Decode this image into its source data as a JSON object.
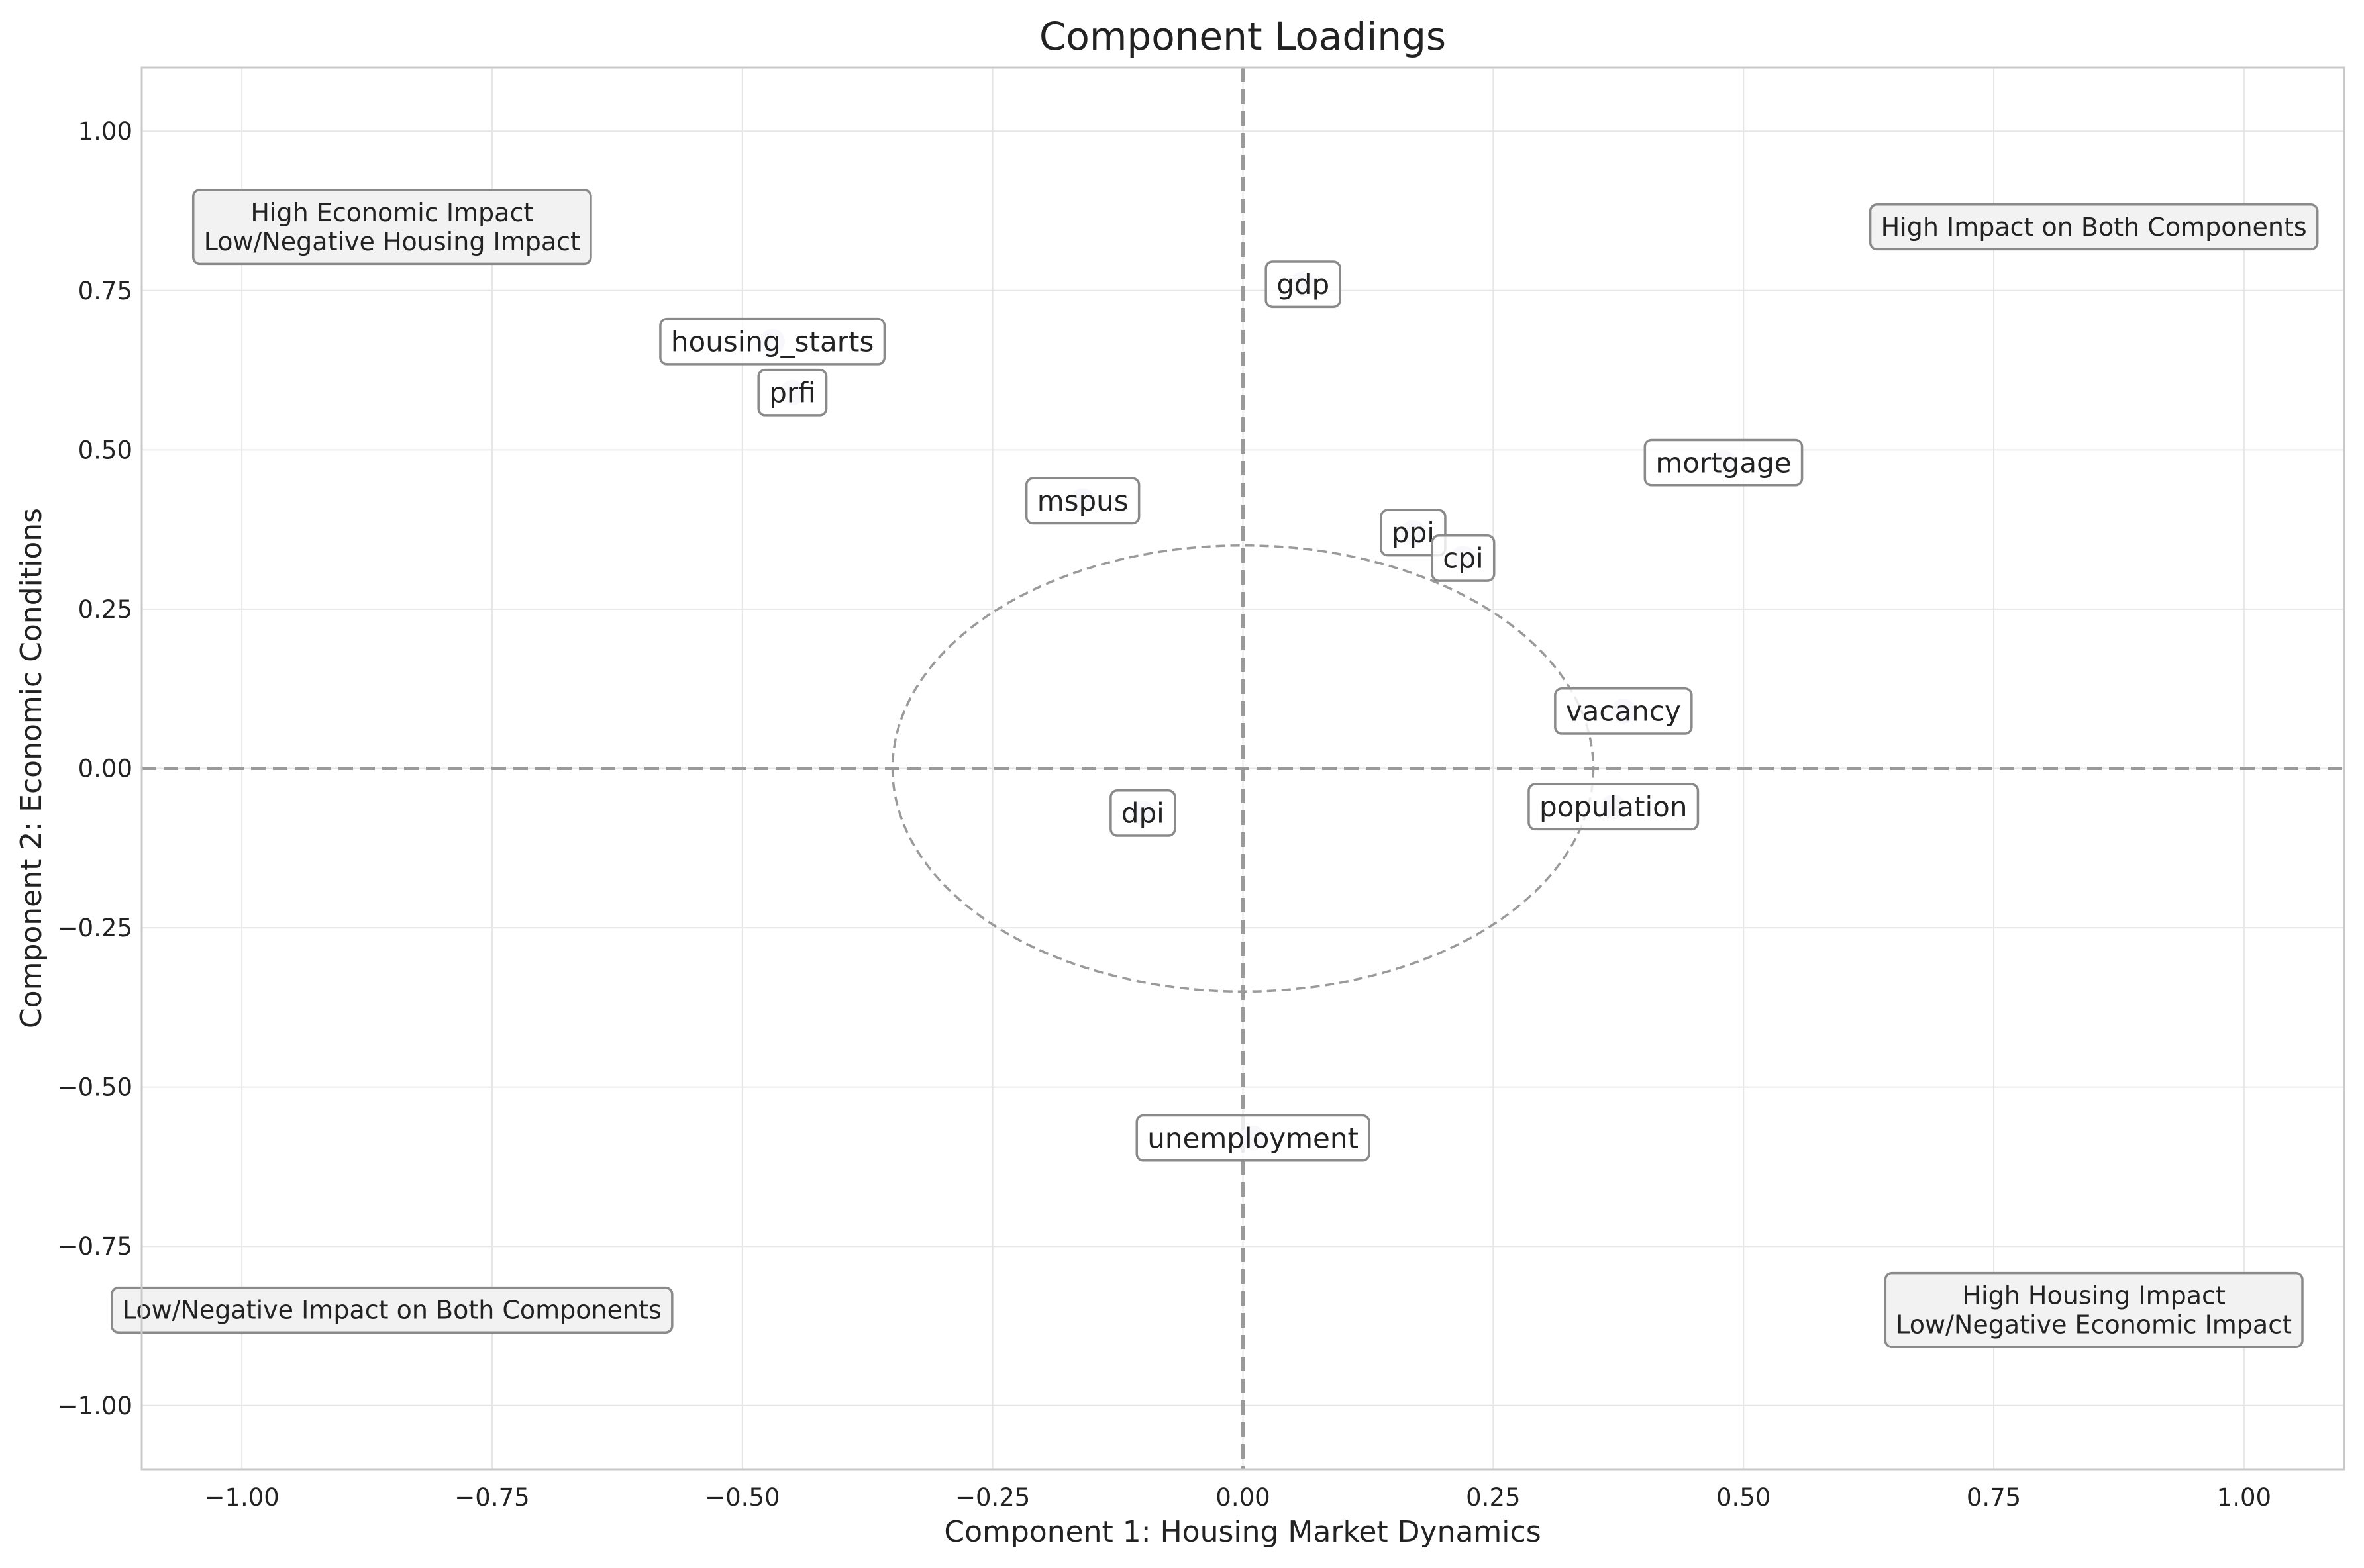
{
  "chart_data": {
    "type": "scatter",
    "title": "Component Loadings",
    "xlabel": "Component 1: Housing Market Dynamics",
    "ylabel": "Component 2: Economic Conditions",
    "xlim": [
      -1.1,
      1.1
    ],
    "ylim": [
      -1.1,
      1.1
    ],
    "x_ticks": [
      -1.0,
      -0.75,
      -0.5,
      -0.25,
      0.0,
      0.25,
      0.5,
      0.75,
      1.0
    ],
    "y_ticks": [
      -1.0,
      -0.75,
      -0.5,
      -0.25,
      0.0,
      0.25,
      0.5,
      0.75,
      1.0
    ],
    "x_tick_labels": [
      "−1.00",
      "−0.75",
      "−0.50",
      "−0.25",
      "0.00",
      "0.25",
      "0.50",
      "0.75",
      "1.00"
    ],
    "y_tick_labels": [
      "−1.00",
      "−0.75",
      "−0.50",
      "−0.25",
      "0.00",
      "0.25",
      "0.50",
      "0.75",
      "1.00"
    ],
    "grid": true,
    "reference_lines": {
      "x": 0,
      "y": 0,
      "style": "dashed"
    },
    "reference_circle": {
      "radius": 0.35,
      "style": "dashed"
    },
    "point_color": "#dcdcef",
    "points": [
      {
        "label": "gdp",
        "x": 0.06,
        "y": 0.76
      },
      {
        "label": "housing_starts",
        "x": -0.47,
        "y": 0.67
      },
      {
        "label": "prfi",
        "x": -0.45,
        "y": 0.59
      },
      {
        "label": "mortgage",
        "x": 0.48,
        "y": 0.48
      },
      {
        "label": "mspus",
        "x": -0.16,
        "y": 0.42
      },
      {
        "label": "ppi",
        "x": 0.17,
        "y": 0.37
      },
      {
        "label": "cpi",
        "x": 0.22,
        "y": 0.33
      },
      {
        "label": "vacancy",
        "x": 0.38,
        "y": 0.09
      },
      {
        "label": "population",
        "x": 0.37,
        "y": -0.06
      },
      {
        "label": "dpi",
        "x": -0.1,
        "y": -0.07
      },
      {
        "label": "unemployment",
        "x": 0.01,
        "y": -0.58
      }
    ],
    "quadrant_annotations": [
      {
        "lines": [
          "High Economic Impact",
          "Low/Negative Housing Impact"
        ],
        "x": -0.85,
        "y": 0.85
      },
      {
        "lines": [
          "High Impact on Both Components"
        ],
        "x": 0.85,
        "y": 0.85
      },
      {
        "lines": [
          "Low/Negative Impact on Both Components"
        ],
        "x": -0.85,
        "y": -0.85
      },
      {
        "lines": [
          "High Housing Impact",
          "Low/Negative Economic Impact"
        ],
        "x": 0.85,
        "y": -0.85
      }
    ]
  }
}
